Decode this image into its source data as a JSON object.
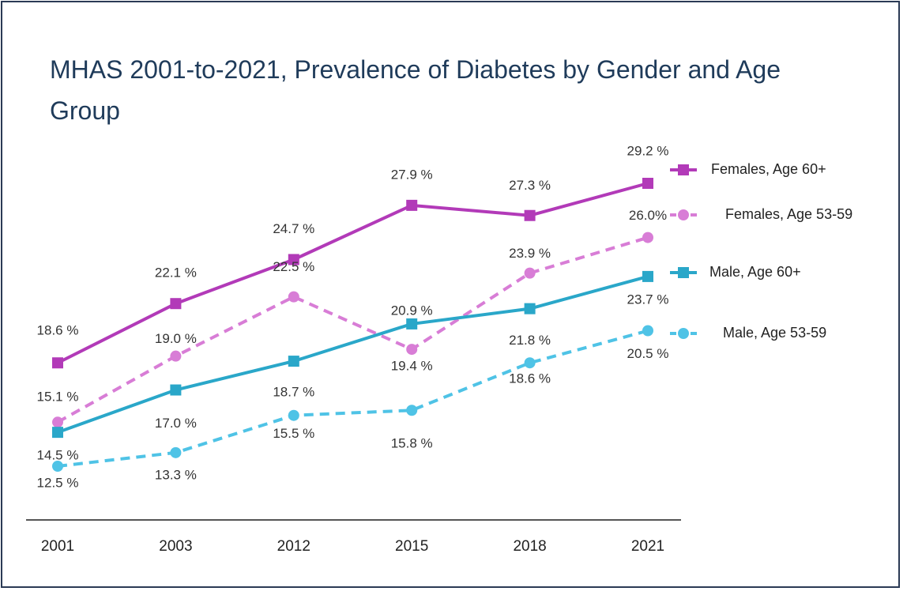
{
  "chart_data": {
    "type": "line",
    "title": "MHAS 2001-to-2021, Prevalence of Diabetes by Gender and Age Group",
    "categories": [
      "2001",
      "2003",
      "2012",
      "2015",
      "2018",
      "2021"
    ],
    "series": [
      {
        "name": "Females, Age 60+",
        "color": "#b23ab8",
        "dashed": false,
        "marker": "square",
        "values": [
          18.6,
          22.1,
          24.7,
          27.9,
          27.3,
          29.2
        ],
        "value_labels": [
          "18.6 %",
          "22.1 %",
          "24.7 %",
          "27.9 %",
          "27.3 %",
          "29.2 %"
        ]
      },
      {
        "name": "Females, Age 53-59",
        "color": "#d87dd6",
        "dashed": true,
        "marker": "circle",
        "values": [
          15.1,
          19.0,
          22.5,
          19.4,
          23.9,
          26.0
        ],
        "value_labels": [
          "15.1 %",
          "19.0 %",
          "22.5 %",
          "19.4 %",
          "23.9 %",
          "26.0%"
        ]
      },
      {
        "name": "Male, Age 60+",
        "color": "#2aa7c9",
        "dashed": false,
        "marker": "square",
        "values": [
          14.5,
          17.0,
          18.7,
          20.9,
          21.8,
          23.7
        ],
        "value_labels": [
          "14.5 %",
          "17.0 %",
          "18.7 %",
          "20.9 %",
          "21.8 %",
          "23.7 %"
        ]
      },
      {
        "name": "Male, Age 53-59",
        "color": "#4fc3e6",
        "dashed": true,
        "marker": "circle",
        "values": [
          12.5,
          13.3,
          15.5,
          15.8,
          18.6,
          20.5
        ],
        "value_labels": [
          "12.5 %",
          "13.3 %",
          "15.5 %",
          "15.8 %",
          "18.6 %",
          "20.5 %"
        ]
      }
    ]
  }
}
